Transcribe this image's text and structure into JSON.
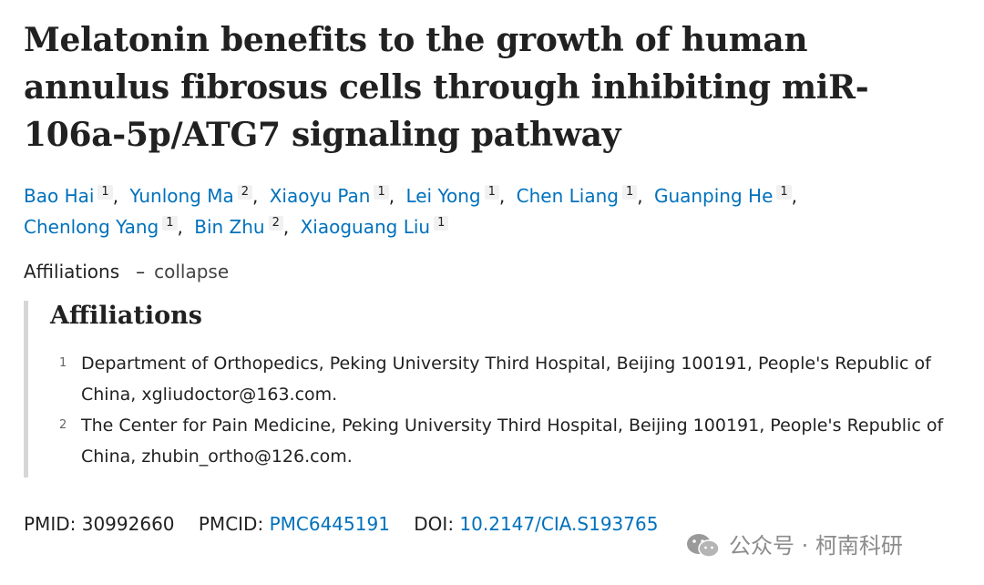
{
  "article": {
    "title": "Melatonin benefits to the growth of human annulus fibrosus cells through inhibiting miR-106a-5p/ATG7 signaling pathway"
  },
  "authors": [
    {
      "name": "Bao Hai",
      "affiliation": "1"
    },
    {
      "name": "Yunlong Ma",
      "affiliation": "2"
    },
    {
      "name": "Xiaoyu Pan",
      "affiliation": "1"
    },
    {
      "name": "Lei Yong",
      "affiliation": "1"
    },
    {
      "name": "Chen Liang",
      "affiliation": "1"
    },
    {
      "name": "Guanping He",
      "affiliation": "1"
    },
    {
      "name": "Chenlong Yang",
      "affiliation": "1"
    },
    {
      "name": "Bin Zhu",
      "affiliation": "2"
    },
    {
      "name": "Xiaoguang Liu",
      "affiliation": "1"
    }
  ],
  "affiliations_toggle": {
    "label": "Affiliations",
    "separator": "–",
    "action": "collapse"
  },
  "affiliations": {
    "heading": "Affiliations",
    "items": [
      {
        "num": "1",
        "text": "Department of Orthopedics, Peking University Third Hospital, Beijing 100191, People's Republic of China, xgliudoctor@163.com."
      },
      {
        "num": "2",
        "text": "The Center for Pain Medicine, Peking University Third Hospital, Beijing 100191, People's Republic of China, zhubin_ortho@126.com."
      }
    ]
  },
  "identifiers": {
    "pmid_label": "PMID:",
    "pmid": "30992660",
    "pmcid_label": "PMCID:",
    "pmcid": "PMC6445191",
    "doi_label": "DOI:",
    "doi": "10.2147/CIA.S193765"
  },
  "watermark": {
    "text": "公众号 · 柯南科研",
    "icon": "wechat-icon"
  },
  "colors": {
    "link": "#0071bc",
    "text": "#212121",
    "panel_border": "#d6d6d6",
    "watermark": "#8c8c8c"
  }
}
